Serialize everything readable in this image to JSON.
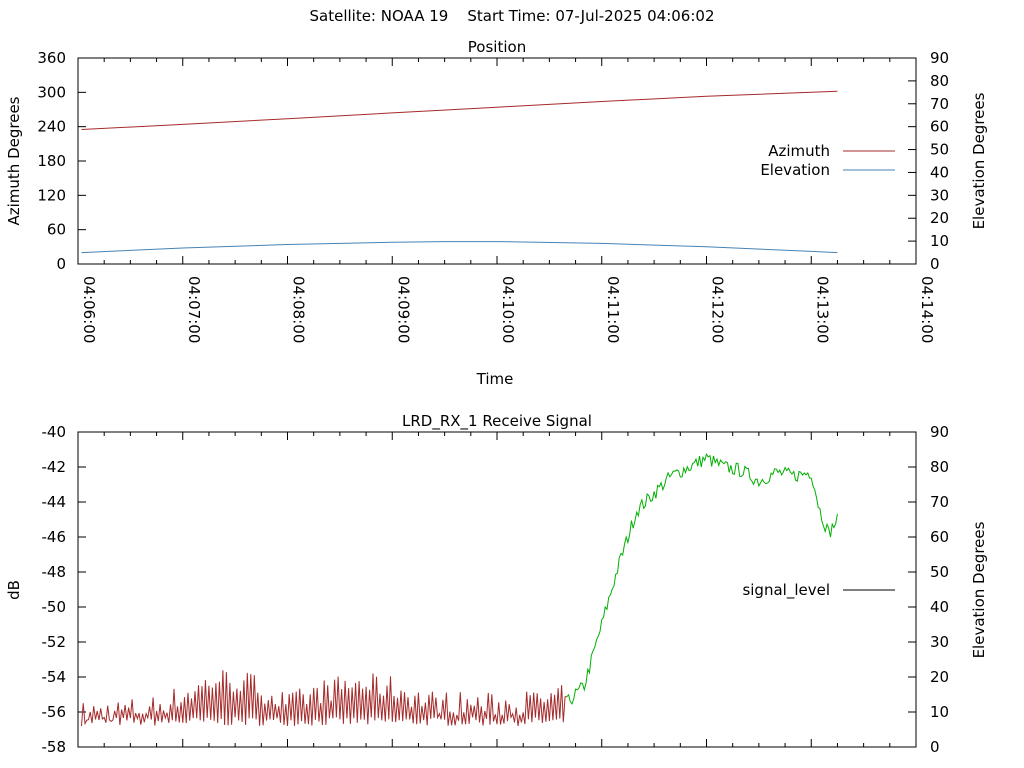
{
  "header": {
    "title": "Satellite: NOAA 19    Start Time: 07-Jul-2025 04:06:02"
  },
  "chart_data": [
    {
      "type": "line",
      "title": "Position",
      "xlabel": "Time",
      "ylabel": "Azimuth Degrees",
      "y2label": "Elevation Degrees",
      "x_ticks": [
        "04:06:00",
        "04:07:00",
        "04:08:00",
        "04:09:00",
        "04:10:00",
        "04:11:00",
        "04:12:00",
        "04:13:00",
        "04:14:00"
      ],
      "xlim": [
        "04:06:00",
        "04:14:00"
      ],
      "ylim": [
        0,
        360
      ],
      "y_ticks": [
        0,
        60,
        120,
        180,
        240,
        300,
        360
      ],
      "y2lim": [
        0,
        90
      ],
      "y2_ticks": [
        0,
        10,
        20,
        30,
        40,
        50,
        60,
        70,
        80,
        90
      ],
      "legend_position": "right",
      "series": [
        {
          "name": "Azimuth",
          "color": "#a52a2a",
          "axis": "y",
          "x": [
            "04:06:02",
            "04:07:00",
            "04:08:00",
            "04:09:00",
            "04:10:00",
            "04:11:00",
            "04:12:00",
            "04:13:00",
            "04:13:15"
          ],
          "values": [
            235,
            244,
            254,
            264,
            274,
            284,
            293,
            300,
            302
          ]
        },
        {
          "name": "Elevation",
          "color": "#4682b4",
          "axis": "y2",
          "x": [
            "04:06:02",
            "04:07:00",
            "04:08:00",
            "04:09:00",
            "04:09:30",
            "04:10:00",
            "04:11:00",
            "04:12:00",
            "04:13:00",
            "04:13:15"
          ],
          "values": [
            5,
            7,
            8.5,
            9.5,
            9.8,
            9.8,
            9,
            7.5,
            5.5,
            5
          ]
        }
      ]
    },
    {
      "type": "line",
      "title": "LRD_RX_1 Receive Signal",
      "ylabel": "dB",
      "y2label": "Elevation Degrees",
      "xlim": [
        "04:06:00",
        "04:14:00"
      ],
      "ylim": [
        -58,
        -40
      ],
      "y_ticks": [
        -58,
        -56,
        -54,
        -52,
        -50,
        -48,
        -46,
        -44,
        -42,
        -40
      ],
      "y2lim": [
        0,
        90
      ],
      "y2_ticks": [
        0,
        10,
        20,
        30,
        40,
        50,
        60,
        70,
        80,
        90
      ],
      "legend_position": "right",
      "series": [
        {
          "name": "signal_level",
          "color": "#000000",
          "segment_colors": {
            "low": "#a52a2a",
            "high": "#00b000"
          },
          "x": [
            "04:06:02",
            "04:06:20",
            "04:06:40",
            "04:07:00",
            "04:07:20",
            "04:07:40",
            "04:08:00",
            "04:08:20",
            "04:08:40",
            "04:09:00",
            "04:09:20",
            "04:09:40",
            "04:10:00",
            "04:10:20",
            "04:10:40",
            "04:10:50",
            "04:11:00",
            "04:11:10",
            "04:11:20",
            "04:11:30",
            "04:11:40",
            "04:11:50",
            "04:12:00",
            "04:12:10",
            "04:12:20",
            "04:12:30",
            "04:12:40",
            "04:12:50",
            "04:13:00",
            "04:13:05",
            "04:13:10",
            "04:13:15"
          ],
          "values": [
            -56.5,
            -56.3,
            -56.2,
            -55.5,
            -54.5,
            -54.8,
            -56.0,
            -55.2,
            -54.8,
            -55.0,
            -55.8,
            -55.9,
            -56.0,
            -55.8,
            -55.5,
            -54.5,
            -51.0,
            -47.5,
            -44.5,
            -43.5,
            -42.5,
            -42.0,
            -41.5,
            -42.0,
            -42.2,
            -42.8,
            -42.3,
            -42.5,
            -42.3,
            -44.5,
            -45.8,
            -45.0
          ]
        }
      ]
    }
  ]
}
